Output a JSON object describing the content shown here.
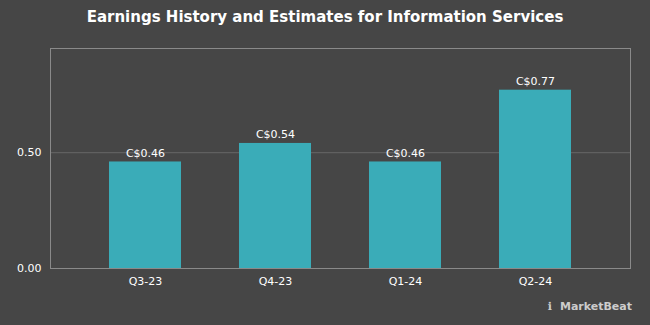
{
  "chart_data": {
    "type": "bar",
    "title": "Earnings History and Estimates for Information Services",
    "categories": [
      "Q3-23",
      "Q4-23",
      "Q1-24",
      "Q2-24"
    ],
    "values": [
      0.46,
      0.54,
      0.46,
      0.77
    ],
    "value_labels": [
      "C$0.46",
      "C$0.54",
      "C$0.46",
      "C$0.77"
    ],
    "data_labels": true,
    "color": "#3aacb8",
    "ylim": [
      0,
      0.95
    ],
    "yticks": [
      {
        "value": 0.0,
        "label": "0.00"
      },
      {
        "value": 0.5,
        "label": "0.50"
      }
    ],
    "grid": true,
    "annotations": [
      "ℹ",
      "MarketBeat"
    ]
  }
}
